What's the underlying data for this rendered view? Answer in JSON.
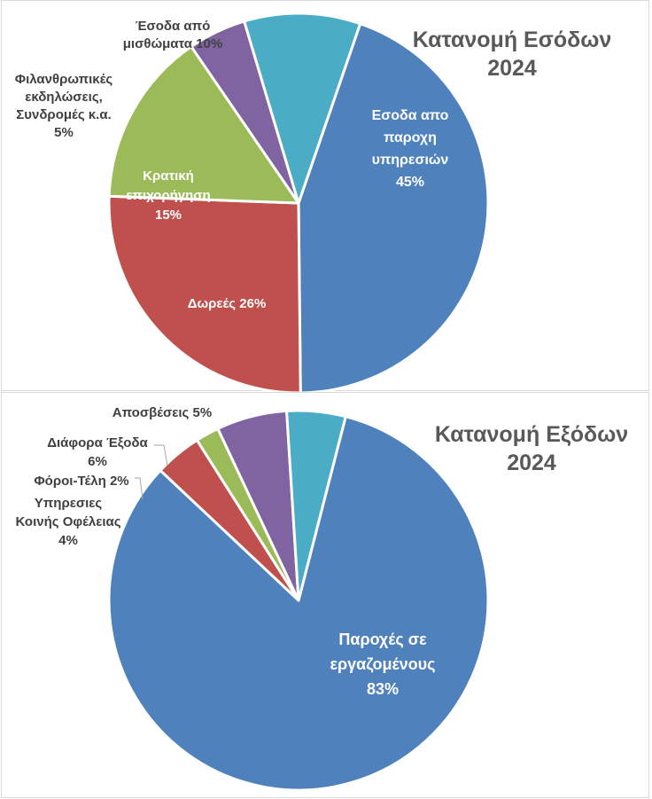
{
  "charts": [
    {
      "type": "pie",
      "title": [
        "Κατανομή Εσόδων",
        "2024"
      ],
      "slices": [
        {
          "label": [
            "Εσοδα απο",
            "παροχη",
            "υπηρεσιών",
            "45%"
          ],
          "value": 45,
          "color": "#4f81bd"
        },
        {
          "label": [
            "Δωρεές 26%"
          ],
          "value": 26,
          "color": "#c0504d"
        },
        {
          "label": [
            "Κρατική",
            "επιχορήγηση",
            "15%"
          ],
          "value": 15,
          "color": "#9bbb59"
        },
        {
          "label": [
            "Φιλανθρωπικές",
            "εκδηλώσεις,",
            "Συνδρομές κ.α.",
            "5%"
          ],
          "value": 5,
          "color": "#8064a2"
        },
        {
          "label": [
            "Έσοδα από",
            "μισθώματα 10%"
          ],
          "value": 10,
          "color": "#4bacc6"
        }
      ]
    },
    {
      "type": "pie",
      "title": [
        "Κατανομή Εξόδων",
        "2024"
      ],
      "slices": [
        {
          "label": [
            "Παροχές σε",
            "εργαζομένους",
            "83%"
          ],
          "value": 83,
          "color": "#4f81bd"
        },
        {
          "label": [
            "Υπηρεσιες",
            "Κοινής Οφέλειας",
            "4%"
          ],
          "value": 4,
          "color": "#c0504d"
        },
        {
          "label": [
            "Φόροι-Τέλη 2%"
          ],
          "value": 2,
          "color": "#9bbb59"
        },
        {
          "label": [
            "Διάφορα Έξοδα",
            "6%"
          ],
          "value": 6,
          "color": "#8064a2"
        },
        {
          "label": [
            "Αποσβέσεις 5%"
          ],
          "value": 5,
          "color": "#4bacc6"
        }
      ]
    }
  ]
}
